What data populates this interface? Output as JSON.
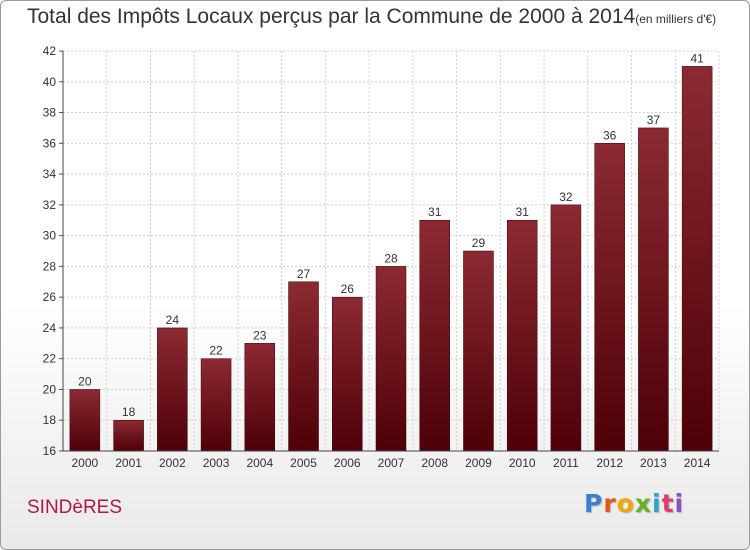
{
  "title": "Total des Impôts Locaux perçus par la Commune de 2000 à 2014",
  "title_unit": "(en milliers d'€)",
  "commune": "SINDèRES",
  "logo_text": "Proxiti",
  "chart_data": {
    "type": "bar",
    "categories": [
      "2000",
      "2001",
      "2002",
      "2003",
      "2004",
      "2005",
      "2006",
      "2007",
      "2008",
      "2009",
      "2010",
      "2011",
      "2012",
      "2013",
      "2014"
    ],
    "values": [
      20,
      18,
      24,
      22,
      23,
      27,
      26,
      28,
      31,
      29,
      31,
      32,
      36,
      37,
      41
    ],
    "ylim": [
      16,
      42
    ],
    "yticks": [
      16,
      18,
      20,
      22,
      24,
      26,
      28,
      30,
      32,
      34,
      36,
      38,
      40,
      42
    ],
    "grid": true,
    "bar_color": "#7a1a22"
  }
}
